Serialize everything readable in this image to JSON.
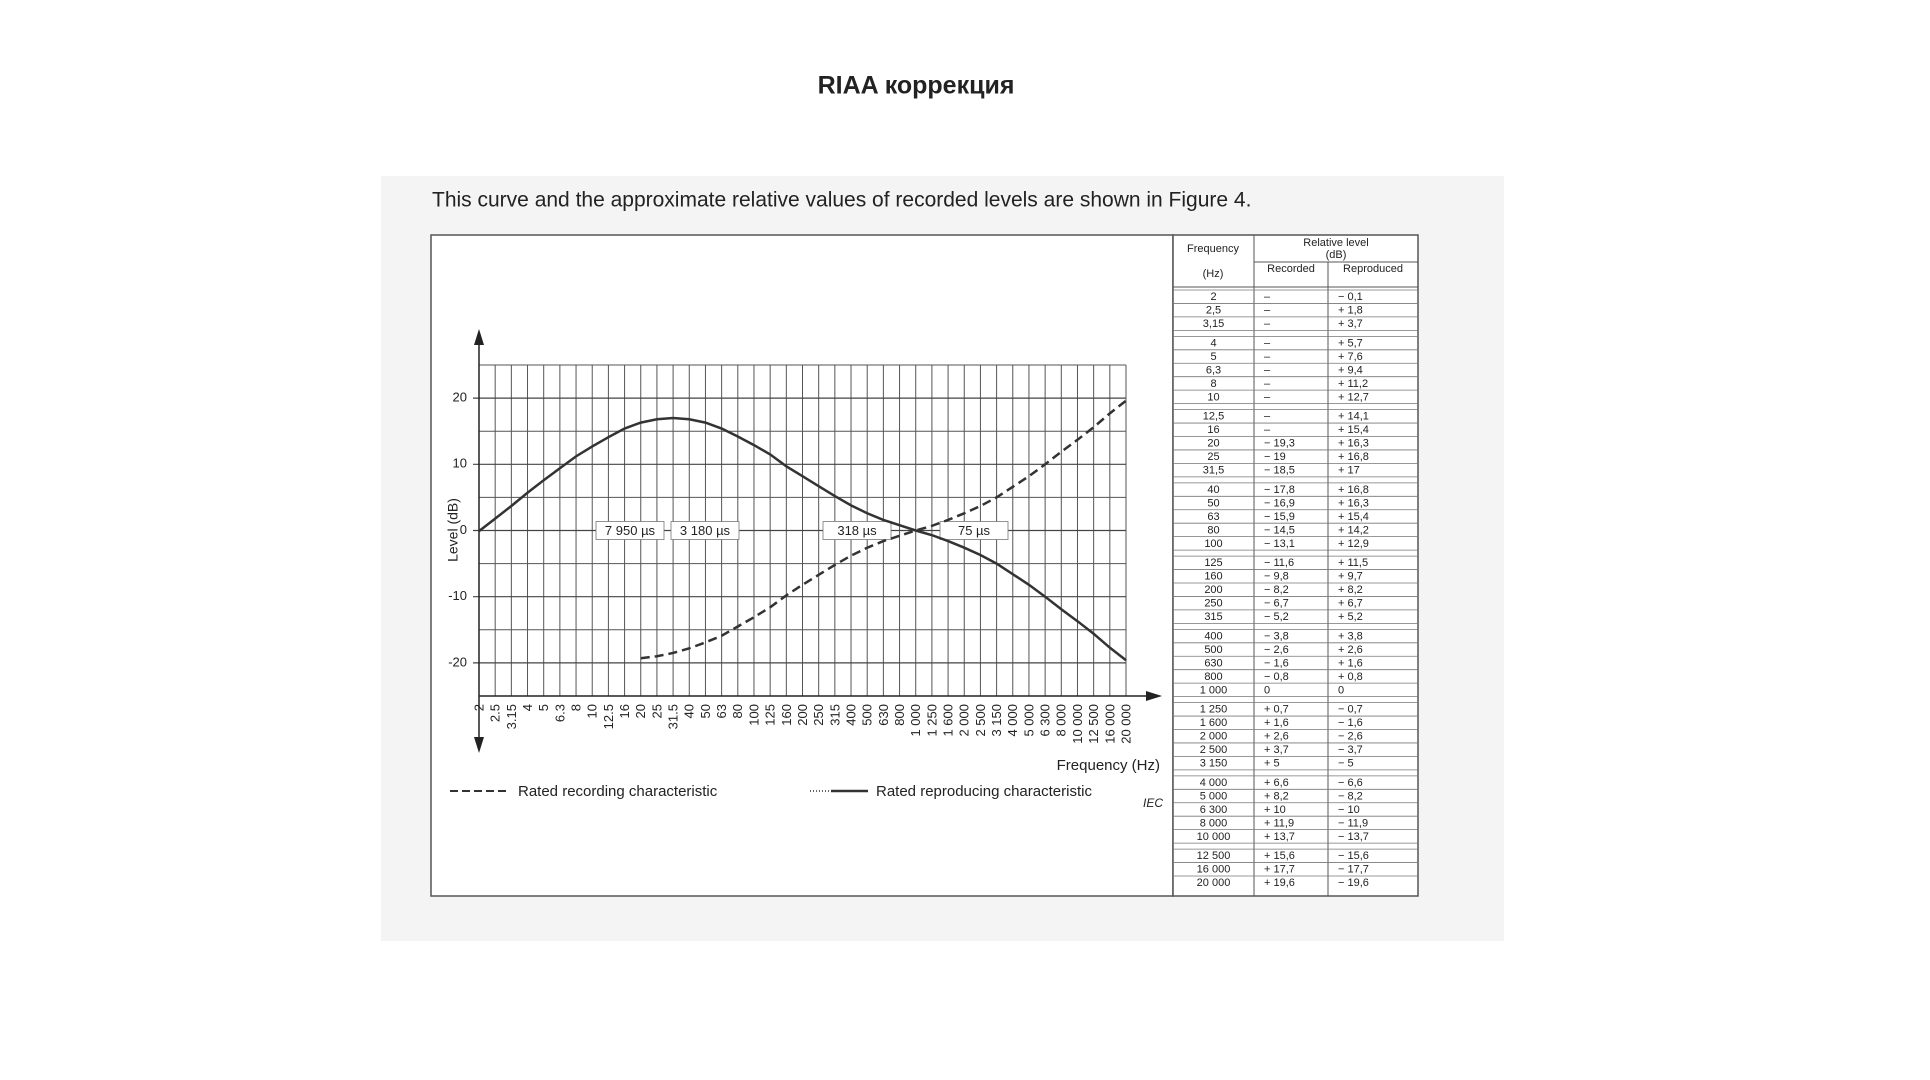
{
  "header": {
    "title": "RIAA коррекция"
  },
  "caption": "This curve and the approximate relative values of recorded levels are shown in Figure 4.",
  "chart_data": {
    "type": "line",
    "x_label": "Frequency  (Hz)",
    "y_label": "Level  (dB)",
    "source": "IEC",
    "categories": [
      "2",
      "2.5",
      "3.15",
      "4",
      "5",
      "6.3",
      "8",
      "10",
      "12.5",
      "16",
      "20",
      "25",
      "31.5",
      "40",
      "50",
      "63",
      "80",
      "100",
      "125",
      "160",
      "200",
      "250",
      "315",
      "400",
      "500",
      "630",
      "800",
      "1 000",
      "1 250",
      "1 600",
      "2 000",
      "2 500",
      "3 150",
      "4 000",
      "5 000",
      "6 300",
      "8 000",
      "10 000",
      "12 500",
      "16 000",
      "20 000"
    ],
    "series": [
      {
        "name": "Rated recording characteristic",
        "color": "#333333",
        "style": "dashed",
        "values": [
          null,
          null,
          null,
          null,
          null,
          null,
          null,
          null,
          null,
          null,
          -19.3,
          -19,
          -18.5,
          -17.8,
          -16.9,
          -15.9,
          -14.5,
          -13.1,
          -11.6,
          -9.8,
          -8.2,
          -6.7,
          -5.2,
          -3.8,
          -2.6,
          -1.6,
          -0.8,
          0,
          0.7,
          1.6,
          2.6,
          3.7,
          5,
          6.6,
          8.2,
          10,
          11.9,
          13.7,
          15.6,
          17.7,
          19.6
        ]
      },
      {
        "name": "Rated reproducing characteristic",
        "color": "#333333",
        "style": "solid",
        "values": [
          -0.1,
          1.8,
          3.7,
          5.7,
          7.6,
          9.4,
          11.2,
          12.7,
          14.1,
          15.4,
          16.3,
          16.8,
          17,
          16.8,
          16.3,
          15.4,
          14.2,
          12.9,
          11.5,
          9.7,
          8.2,
          6.7,
          5.2,
          3.8,
          2.6,
          1.6,
          0.8,
          0,
          -0.7,
          -1.6,
          -2.6,
          -3.7,
          -5,
          -6.6,
          -8.2,
          -10,
          -11.9,
          -13.7,
          -15.6,
          -17.7,
          -19.6
        ]
      }
    ],
    "ylim": [
      -25,
      25
    ],
    "yticks": [
      -20,
      -10,
      0,
      10,
      20
    ],
    "grid": true,
    "annotations": [
      "7 950 µs",
      "3 180 µs",
      "318 µs",
      "75 µs"
    ]
  },
  "table": {
    "header": {
      "frequency": "Frequency",
      "unit": "(Hz)",
      "relative": "Relative level",
      "relative_unit": "(dB)",
      "recorded": "Recorded",
      "reproduced": "Reproduced"
    },
    "rows": [
      [
        "2",
        "–",
        "− 0,1"
      ],
      [
        "2,5",
        "–",
        "+ 1,8"
      ],
      [
        "3,15",
        "–",
        "+ 3,7"
      ],
      [
        "4",
        "–",
        "+ 5,7"
      ],
      [
        "5",
        "–",
        "+ 7,6"
      ],
      [
        "6,3",
        "–",
        "+ 9,4"
      ],
      [
        "8",
        "–",
        "+ 11,2"
      ],
      [
        "10",
        "–",
        "+ 12,7"
      ],
      [
        "12,5",
        "–",
        "+ 14,1"
      ],
      [
        "16",
        "–",
        "+ 15,4"
      ],
      [
        "20",
        "− 19,3",
        "+ 16,3"
      ],
      [
        "25",
        "− 19",
        "+ 16,8"
      ],
      [
        "31,5",
        "− 18,5",
        "+ 17"
      ],
      [
        "40",
        "− 17,8",
        "+ 16,8"
      ],
      [
        "50",
        "− 16,9",
        "+ 16,3"
      ],
      [
        "63",
        "− 15,9",
        "+ 15,4"
      ],
      [
        "80",
        "− 14,5",
        "+ 14,2"
      ],
      [
        "100",
        "− 13,1",
        "+ 12,9"
      ],
      [
        "125",
        "− 11,6",
        "+ 11,5"
      ],
      [
        "160",
        "− 9,8",
        "+ 9,7"
      ],
      [
        "200",
        "− 8,2",
        "+ 8,2"
      ],
      [
        "250",
        "− 6,7",
        "+ 6,7"
      ],
      [
        "315",
        "− 5,2",
        "+ 5,2"
      ],
      [
        "400",
        "− 3,8",
        "+ 3,8"
      ],
      [
        "500",
        "− 2,6",
        "+ 2,6"
      ],
      [
        "630",
        "− 1,6",
        "+ 1,6"
      ],
      [
        "800",
        "− 0,8",
        "+ 0,8"
      ],
      [
        "1 000",
        "0",
        "0"
      ],
      [
        "1 250",
        "+ 0,7",
        "− 0,7"
      ],
      [
        "1 600",
        "+ 1,6",
        "− 1,6"
      ],
      [
        "2 000",
        "+ 2,6",
        "− 2,6"
      ],
      [
        "2 500",
        "+ 3,7",
        "− 3,7"
      ],
      [
        "3 150",
        "+ 5",
        "− 5"
      ],
      [
        "4 000",
        "+ 6,6",
        "− 6,6"
      ],
      [
        "5 000",
        "+ 8,2",
        "− 8,2"
      ],
      [
        "6 300",
        "+ 10",
        "− 10"
      ],
      [
        "8 000",
        "+ 11,9",
        "− 11,9"
      ],
      [
        "10 000",
        "+ 13,7",
        "− 13,7"
      ],
      [
        "12 500",
        "+ 15,6",
        "− 15,6"
      ],
      [
        "16 000",
        "+ 17,7",
        "− 17,7"
      ],
      [
        "20 000",
        "+ 19,6",
        "− 19,6"
      ]
    ]
  }
}
